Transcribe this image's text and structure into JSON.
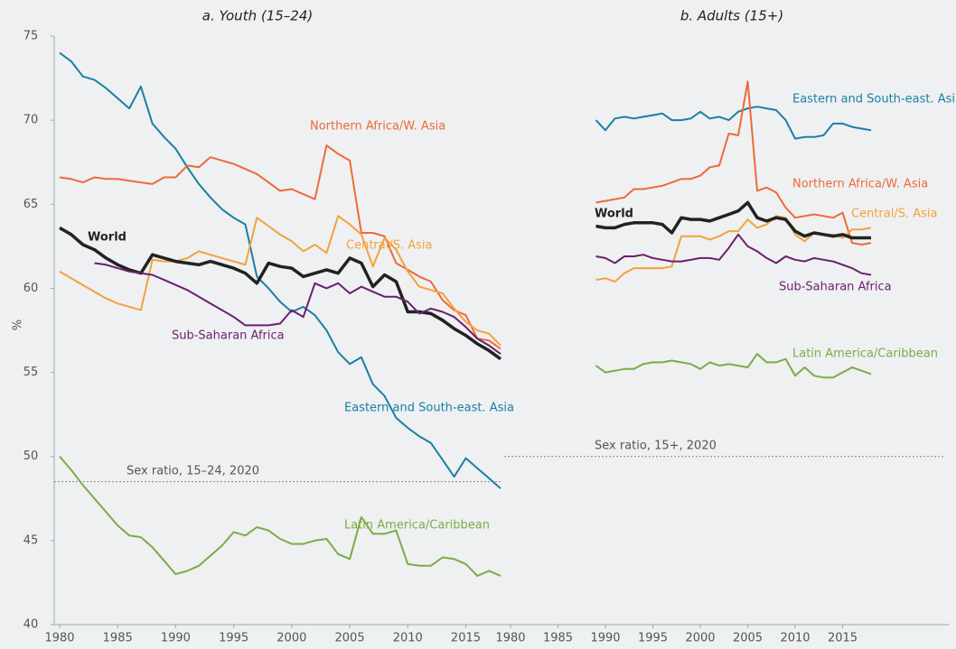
{
  "chart_data": [
    {
      "type": "line",
      "title": "a. Youth (15–24)",
      "ylabel": "%",
      "x": [
        1980,
        1981,
        1982,
        1983,
        1984,
        1985,
        1986,
        1987,
        1988,
        1989,
        1990,
        1991,
        1992,
        1993,
        1994,
        1995,
        1996,
        1997,
        1998,
        1999,
        2000,
        2001,
        2002,
        2003,
        2004,
        2005,
        2006,
        2007,
        2008,
        2009,
        2010,
        2011,
        2012,
        2013,
        2014,
        2015,
        2016,
        2017,
        2018
      ],
      "xlim": [
        1980,
        2018
      ],
      "xticks": [
        1980,
        1985,
        1990,
        1995,
        2000,
        2005,
        2010,
        2015
      ],
      "ylim": [
        40,
        75
      ],
      "yticks": [
        40,
        45,
        50,
        55,
        60,
        65,
        70,
        75
      ],
      "reference": {
        "value": 48.5,
        "label": "Sex ratio, 15–24, 2020"
      },
      "series": [
        {
          "name": "Eastern and South-east. Asia",
          "color": "#1b7fa3",
          "values": [
            74.0,
            73.5,
            72.6,
            72.4,
            71.9,
            71.3,
            70.7,
            72.0,
            69.8,
            69.0,
            68.3,
            67.2,
            66.2,
            65.4,
            64.7,
            64.2,
            63.8,
            60.7,
            60.0,
            59.2,
            58.6,
            58.9,
            58.4,
            57.5,
            56.2,
            55.5,
            55.9,
            54.3,
            53.6,
            52.3,
            51.7,
            51.2,
            50.8,
            49.8,
            48.8,
            49.9,
            49.3,
            48.7,
            48.1
          ]
        },
        {
          "name": "Northern Africa/W. Asia",
          "color": "#ee6a37",
          "values": [
            66.6,
            66.5,
            66.3,
            66.6,
            66.5,
            66.5,
            66.4,
            66.3,
            66.2,
            66.6,
            66.6,
            67.3,
            67.2,
            67.8,
            67.6,
            67.4,
            67.1,
            66.8,
            66.3,
            65.8,
            65.9,
            65.6,
            65.3,
            68.5,
            68.0,
            67.6,
            63.3,
            63.3,
            63.1,
            61.5,
            61.1,
            60.7,
            60.4,
            59.3,
            58.7,
            58.4,
            57.0,
            56.9,
            56.4
          ]
        },
        {
          "name": "Central/S. Asia",
          "color": "#f4a23a",
          "values": [
            61.0,
            60.6,
            60.2,
            59.8,
            59.4,
            59.1,
            58.9,
            58.7,
            61.7,
            61.6,
            61.6,
            61.8,
            62.2,
            62.0,
            61.8,
            61.6,
            61.4,
            64.2,
            63.7,
            63.2,
            62.8,
            62.2,
            62.6,
            62.1,
            64.3,
            63.8,
            63.2,
            61.3,
            63.0,
            62.3,
            61.0,
            60.1,
            59.9,
            59.7,
            58.8,
            58.0,
            57.5,
            57.3,
            56.6
          ]
        },
        {
          "name": "World",
          "color": "#222222",
          "values": [
            63.6,
            63.2,
            62.6,
            62.3,
            61.8,
            61.4,
            61.1,
            60.9,
            62.0,
            61.8,
            61.6,
            61.5,
            61.4,
            61.6,
            61.4,
            61.2,
            60.9,
            60.3,
            61.5,
            61.3,
            61.2,
            60.7,
            60.9,
            61.1,
            60.9,
            61.8,
            61.5,
            60.1,
            60.8,
            60.4,
            58.6,
            58.6,
            58.5,
            58.1,
            57.6,
            57.2,
            56.7,
            56.3,
            55.8
          ]
        },
        {
          "name": "Sub-Saharan Africa",
          "color": "#6b1f6e",
          "values": [
            null,
            null,
            null,
            61.5,
            61.4,
            61.2,
            61.0,
            60.9,
            60.8,
            60.5,
            60.2,
            59.9,
            59.5,
            59.1,
            58.7,
            58.3,
            57.8,
            57.8,
            57.8,
            57.9,
            58.7,
            58.3,
            60.3,
            60.0,
            60.3,
            59.7,
            60.1,
            59.8,
            59.5,
            59.5,
            59.2,
            58.5,
            58.8,
            58.6,
            58.3,
            57.7,
            57.0,
            56.6,
            56.1
          ]
        },
        {
          "name": "Latin America/Caribbean",
          "color": "#7aad46",
          "values": [
            50.0,
            49.2,
            48.3,
            47.5,
            46.7,
            45.9,
            45.3,
            45.2,
            44.6,
            43.8,
            43.0,
            43.2,
            43.5,
            44.1,
            44.7,
            45.5,
            45.3,
            45.8,
            45.6,
            45.1,
            44.8,
            44.8,
            45.0,
            45.1,
            44.2,
            43.9,
            46.4,
            45.4,
            45.4,
            45.6,
            43.6,
            43.5,
            43.5,
            44.0,
            43.9,
            43.6,
            42.9,
            43.2,
            42.9
          ]
        }
      ]
    },
    {
      "type": "line",
      "title": "b. Adults (15+)",
      "x": [
        1989,
        1990,
        1991,
        1992,
        1993,
        1994,
        1995,
        1996,
        1997,
        1998,
        1999,
        2000,
        2001,
        2002,
        2003,
        2004,
        2005,
        2006,
        2007,
        2008,
        2009,
        2010,
        2011,
        2012,
        2013,
        2014,
        2015,
        2016,
        2017,
        2018
      ],
      "xlim": [
        1980,
        2018
      ],
      "xticks": [
        1980,
        1985,
        1990,
        1995,
        2000,
        2005,
        2010,
        2015
      ],
      "ylim": [
        40,
        75
      ],
      "reference": {
        "value": 50.0,
        "label": "Sex ratio, 15+, 2020"
      },
      "series": [
        {
          "name": "Eastern and South-east. Asia",
          "color": "#1b7fa3",
          "values": [
            70.0,
            69.4,
            70.1,
            70.2,
            70.1,
            70.2,
            70.3,
            70.4,
            70.0,
            70.0,
            70.1,
            70.5,
            70.1,
            70.2,
            70.0,
            70.5,
            70.7,
            70.8,
            70.7,
            70.6,
            70.0,
            68.9,
            69.0,
            69.0,
            69.1,
            69.8,
            69.8,
            69.6,
            69.5,
            69.4
          ]
        },
        {
          "name": "Northern Africa/W. Asia",
          "color": "#ee6a37",
          "values": [
            65.1,
            65.2,
            65.3,
            65.4,
            65.9,
            65.9,
            66.0,
            66.1,
            66.3,
            66.5,
            66.5,
            66.7,
            67.2,
            67.3,
            69.2,
            69.1,
            72.3,
            65.8,
            66.0,
            65.7,
            64.8,
            64.2,
            64.3,
            64.4,
            64.3,
            64.2,
            64.5,
            62.7,
            62.6,
            62.7
          ]
        },
        {
          "name": "Central/S. Asia",
          "color": "#f4a23a",
          "values": [
            60.5,
            60.6,
            60.4,
            60.9,
            61.2,
            61.2,
            61.2,
            61.2,
            61.3,
            63.1,
            63.1,
            63.1,
            62.9,
            63.1,
            63.4,
            63.4,
            64.1,
            63.6,
            63.8,
            64.3,
            64.2,
            63.2,
            62.8,
            63.3,
            63.2,
            63.2,
            63.0,
            63.5,
            63.5,
            63.6
          ]
        },
        {
          "name": "World",
          "color": "#222222",
          "values": [
            63.7,
            63.6,
            63.6,
            63.8,
            63.9,
            63.9,
            63.9,
            63.8,
            63.3,
            64.2,
            64.1,
            64.1,
            64.0,
            64.2,
            64.4,
            64.6,
            65.1,
            64.2,
            64.0,
            64.2,
            64.1,
            63.4,
            63.1,
            63.3,
            63.2,
            63.1,
            63.2,
            63.0,
            63.0,
            63.0
          ]
        },
        {
          "name": "Sub-Saharan Africa",
          "color": "#6b1f6e",
          "values": [
            61.9,
            61.8,
            61.5,
            61.9,
            61.9,
            62.0,
            61.8,
            61.7,
            61.6,
            61.6,
            61.7,
            61.8,
            61.8,
            61.7,
            62.4,
            63.2,
            62.5,
            62.2,
            61.8,
            61.5,
            61.9,
            61.7,
            61.6,
            61.8,
            61.7,
            61.6,
            61.4,
            61.2,
            60.9,
            60.8
          ]
        },
        {
          "name": "Latin America/Caribbean",
          "color": "#7aad46",
          "values": [
            55.4,
            55.0,
            55.1,
            55.2,
            55.2,
            55.5,
            55.6,
            55.6,
            55.7,
            55.6,
            55.5,
            55.2,
            55.6,
            55.4,
            55.5,
            55.4,
            55.3,
            56.1,
            55.6,
            55.6,
            55.8,
            54.8,
            55.3,
            54.8,
            54.7,
            54.7,
            55.0,
            55.3,
            55.1,
            54.9
          ]
        }
      ]
    }
  ]
}
